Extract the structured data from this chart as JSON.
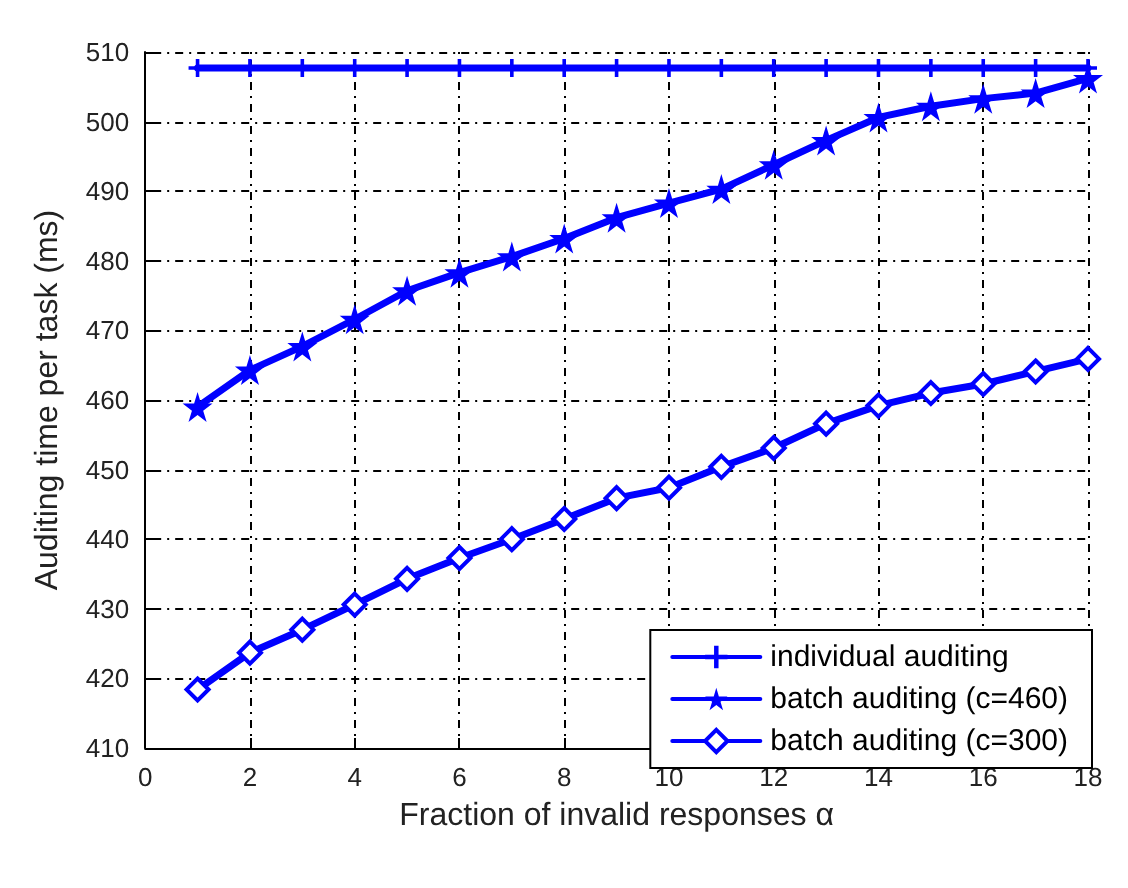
{
  "chart_data": {
    "type": "line",
    "xlabel": "Fraction of invalid responses α",
    "ylabel": "Auditing time per task (ms)",
    "x": [
      1,
      2,
      3,
      4,
      5,
      6,
      7,
      8,
      9,
      10,
      11,
      12,
      13,
      14,
      15,
      16,
      17,
      18
    ],
    "series": [
      {
        "name": "individual auditing",
        "color": "#0000ff",
        "marker": "cross",
        "values": [
          507.7,
          507.7,
          507.7,
          507.7,
          507.7,
          507.7,
          507.7,
          507.7,
          507.7,
          507.7,
          507.7,
          507.7,
          507.7,
          507.7,
          507.7,
          507.7,
          507.7,
          507.7
        ]
      },
      {
        "name": "batch auditing (c=460)",
        "color": "#0000ff",
        "marker": "star",
        "values": [
          459,
          464.3,
          467.7,
          471.6,
          475.7,
          478.3,
          480.6,
          483.2,
          486.2,
          488.3,
          490.3,
          493.8,
          497.3,
          500.6,
          502.2,
          503.3,
          504.1,
          506.2
        ]
      },
      {
        "name": "batch auditing (c=300)",
        "color": "#0000ff",
        "marker": "diamond",
        "values": [
          418.4,
          423.7,
          427,
          430.6,
          434.3,
          437.3,
          440,
          442.9,
          445.9,
          447.4,
          450.4,
          453.1,
          456.6,
          459.2,
          461,
          462.3,
          464.1,
          465.9
        ]
      }
    ],
    "xlim": [
      0,
      18
    ],
    "xticks": [
      0,
      2,
      4,
      6,
      8,
      10,
      12,
      14,
      16,
      18
    ],
    "ylim": [
      410,
      510
    ],
    "yticks": [
      410,
      420,
      430,
      440,
      450,
      460,
      470,
      480,
      490,
      500,
      510
    ],
    "grid": true,
    "legend": "bottom right",
    "line_style": "solid"
  }
}
